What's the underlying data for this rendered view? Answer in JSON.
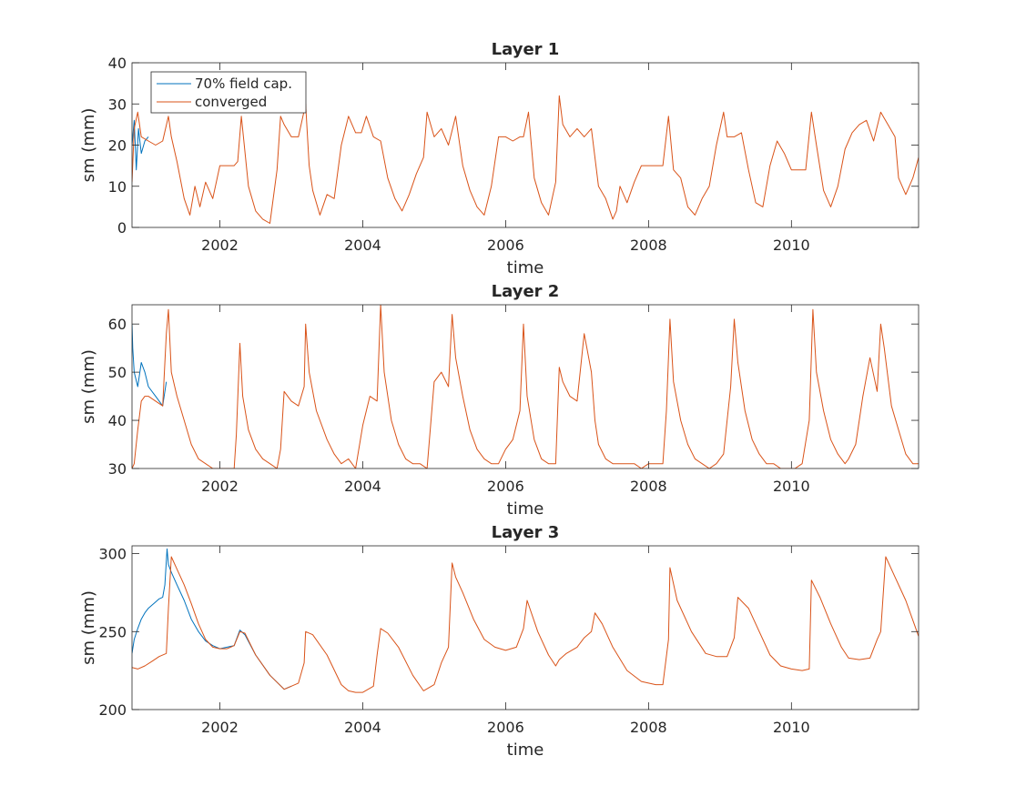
{
  "chart_data": [
    {
      "type": "line",
      "title": "Layer 1",
      "xlabel": "time",
      "ylabel": "sm (mm)",
      "xlim": [
        2000.77,
        2011.78
      ],
      "ylim": [
        0,
        40
      ],
      "xticks": [
        "2002",
        "2004",
        "2006",
        "2008",
        "2010"
      ],
      "yticks": [
        "0",
        "10",
        "20",
        "30",
        "40"
      ],
      "grid": false,
      "legend": {
        "placement": "top-left",
        "entries": [
          "70% field cap.",
          "converged"
        ]
      },
      "series": [
        {
          "name": "70% field cap.",
          "color": "#0072BD",
          "x": [
            2000.77,
            2000.8,
            2000.83,
            2000.86,
            2000.9,
            2000.95,
            2001.0
          ],
          "y": [
            20,
            26,
            14,
            24,
            18,
            21,
            22
          ]
        },
        {
          "name": "converged",
          "color": "#D95319",
          "x": [
            2000.77,
            2000.8,
            2000.85,
            2000.9,
            2001.0,
            2001.1,
            2001.2,
            2001.28,
            2001.32,
            2001.4,
            2001.5,
            2001.58,
            2001.65,
            2001.72,
            2001.8,
            2001.9,
            2002.0,
            2002.1,
            2002.2,
            2002.25,
            2002.3,
            2002.4,
            2002.5,
            2002.6,
            2002.7,
            2002.8,
            2002.85,
            2002.9,
            2003.0,
            2003.1,
            2003.2,
            2003.25,
            2003.3,
            2003.4,
            2003.5,
            2003.6,
            2003.7,
            2003.8,
            2003.9,
            2003.98,
            2004.05,
            2004.15,
            2004.25,
            2004.35,
            2004.45,
            2004.55,
            2004.65,
            2004.75,
            2004.85,
            2004.9,
            2005.0,
            2005.1,
            2005.2,
            2005.3,
            2005.4,
            2005.5,
            2005.6,
            2005.7,
            2005.8,
            2005.9,
            2006.0,
            2006.1,
            2006.2,
            2006.25,
            2006.32,
            2006.4,
            2006.5,
            2006.6,
            2006.7,
            2006.75,
            2006.8,
            2006.9,
            2007.0,
            2007.1,
            2007.2,
            2007.3,
            2007.4,
            2007.5,
            2007.55,
            2007.6,
            2007.7,
            2007.8,
            2007.9,
            2008.0,
            2008.1,
            2008.2,
            2008.28,
            2008.35,
            2008.45,
            2008.55,
            2008.65,
            2008.75,
            2008.85,
            2008.95,
            2009.05,
            2009.1,
            2009.2,
            2009.3,
            2009.4,
            2009.5,
            2009.6,
            2009.7,
            2009.8,
            2009.9,
            2010.0,
            2010.1,
            2010.2,
            2010.28,
            2010.35,
            2010.45,
            2010.55,
            2010.65,
            2010.75,
            2010.85,
            2010.95,
            2011.05,
            2011.15,
            2011.25,
            2011.35,
            2011.45,
            2011.5,
            2011.6,
            2011.7,
            2011.78
          ],
          "y": [
            11,
            24,
            28,
            22,
            21,
            20,
            21,
            27,
            22,
            16,
            7,
            3,
            10,
            5,
            11,
            7,
            15,
            15,
            15,
            16,
            27,
            10,
            4,
            2,
            1,
            14,
            27,
            25,
            22,
            22,
            30,
            15,
            9,
            3,
            8,
            7,
            20,
            27,
            23,
            23,
            27,
            22,
            21,
            12,
            7,
            4,
            8,
            13,
            17,
            28,
            22,
            24,
            20,
            27,
            15,
            9,
            5,
            3,
            10,
            22,
            22,
            21,
            22,
            22,
            28,
            12,
            6,
            3,
            11,
            32,
            25,
            22,
            24,
            22,
            24,
            10,
            7,
            2,
            4,
            10,
            6,
            11,
            15,
            15,
            15,
            15,
            27,
            14,
            12,
            5,
            3,
            7,
            10,
            20,
            28,
            22,
            22,
            23,
            14,
            6,
            5,
            15,
            21,
            18,
            14,
            14,
            14,
            28,
            20,
            9,
            5,
            10,
            19,
            23,
            25,
            26,
            21,
            28,
            25,
            22,
            12,
            8,
            12,
            17
          ]
        }
      ]
    },
    {
      "type": "line",
      "title": "Layer 2",
      "xlabel": "time",
      "ylabel": "sm (mm)",
      "xlim": [
        2000.77,
        2011.78
      ],
      "ylim": [
        30,
        64
      ],
      "xticks": [
        "2002",
        "2004",
        "2006",
        "2008",
        "2010"
      ],
      "yticks": [
        "30",
        "40",
        "50",
        "60"
      ],
      "grid": false,
      "series": [
        {
          "name": "70% field cap.",
          "color": "#0072BD",
          "x": [
            2000.77,
            2000.78,
            2000.8,
            2000.85,
            2000.9,
            2000.95,
            2001.0,
            2001.1,
            2001.2,
            2001.25
          ],
          "y": [
            60,
            55,
            50,
            47,
            52,
            50,
            47,
            45,
            43,
            48
          ]
        },
        {
          "name": "converged",
          "color": "#D95319",
          "x": [
            2000.77,
            2000.8,
            2000.85,
            2000.9,
            2000.95,
            2001.0,
            2001.1,
            2001.2,
            2001.25,
            2001.28,
            2001.32,
            2001.4,
            2001.5,
            2001.6,
            2001.7,
            2001.8,
            2001.9,
            2002.0,
            2002.1,
            2002.2,
            2002.23,
            2002.28,
            2002.32,
            2002.4,
            2002.5,
            2002.6,
            2002.7,
            2002.8,
            2002.85,
            2002.9,
            2003.0,
            2003.1,
            2003.18,
            2003.2,
            2003.25,
            2003.35,
            2003.5,
            2003.6,
            2003.7,
            2003.8,
            2003.9,
            2004.0,
            2004.1,
            2004.2,
            2004.25,
            2004.3,
            2004.4,
            2004.5,
            2004.6,
            2004.7,
            2004.8,
            2004.9,
            2005.0,
            2005.1,
            2005.2,
            2005.25,
            2005.3,
            2005.4,
            2005.5,
            2005.6,
            2005.7,
            2005.8,
            2005.9,
            2006.0,
            2006.1,
            2006.2,
            2006.25,
            2006.3,
            2006.4,
            2006.5,
            2006.6,
            2006.7,
            2006.75,
            2006.8,
            2006.9,
            2007.0,
            2007.1,
            2007.2,
            2007.25,
            2007.3,
            2007.4,
            2007.5,
            2007.6,
            2007.7,
            2007.8,
            2007.9,
            2008.0,
            2008.1,
            2008.2,
            2008.25,
            2008.3,
            2008.35,
            2008.45,
            2008.55,
            2008.65,
            2008.75,
            2008.85,
            2008.95,
            2009.05,
            2009.15,
            2009.2,
            2009.25,
            2009.35,
            2009.45,
            2009.55,
            2009.65,
            2009.75,
            2009.85,
            2009.95,
            2010.05,
            2010.15,
            2010.25,
            2010.3,
            2010.35,
            2010.45,
            2010.55,
            2010.65,
            2010.75,
            2010.8,
            2010.9,
            2011.0,
            2011.1,
            2011.2,
            2011.25,
            2011.3,
            2011.4,
            2011.5,
            2011.6,
            2011.7,
            2011.78
          ],
          "y": [
            30,
            31,
            38,
            44,
            45,
            45,
            44,
            43,
            58,
            63,
            50,
            45,
            40,
            35,
            32,
            31,
            30,
            30,
            30,
            30,
            37,
            56,
            45,
            38,
            34,
            32,
            31,
            30,
            34,
            46,
            44,
            43,
            47,
            60,
            50,
            42,
            36,
            33,
            31,
            32,
            30,
            39,
            45,
            44,
            64,
            50,
            40,
            35,
            32,
            31,
            31,
            30,
            48,
            50,
            47,
            62,
            53,
            45,
            38,
            34,
            32,
            31,
            31,
            34,
            36,
            42,
            60,
            45,
            36,
            32,
            31,
            31,
            51,
            48,
            45,
            44,
            58,
            50,
            40,
            35,
            32,
            31,
            31,
            31,
            31,
            30,
            31,
            31,
            31,
            42,
            61,
            48,
            40,
            35,
            32,
            31,
            30,
            31,
            33,
            47,
            61,
            52,
            42,
            36,
            33,
            31,
            31,
            30,
            30,
            30,
            31,
            40,
            63,
            50,
            42,
            36,
            33,
            31,
            32,
            35,
            45,
            53,
            46,
            60,
            55,
            43,
            38,
            33,
            31,
            31
          ]
        }
      ]
    },
    {
      "type": "line",
      "title": "Layer 3",
      "xlabel": "time",
      "ylabel": "sm (mm)",
      "xlim": [
        2000.77,
        2011.78
      ],
      "ylim": [
        200,
        305
      ],
      "xticks": [
        "2002",
        "2004",
        "2006",
        "2008",
        "2010"
      ],
      "yticks": [
        "200",
        "250",
        "300"
      ],
      "grid": false,
      "series": [
        {
          "name": "70% field cap.",
          "color": "#0072BD",
          "x": [
            2000.77,
            2000.8,
            2000.85,
            2000.9,
            2000.95,
            2001.0,
            2001.05,
            2001.1,
            2001.15,
            2001.2,
            2001.23,
            2001.26,
            2001.28,
            2001.32,
            2001.4,
            2001.5,
            2001.6,
            2001.7,
            2001.8,
            2001.9,
            2002.0,
            2002.1,
            2002.2,
            2002.28,
            2002.35,
            2002.5,
            2002.7,
            2002.9,
            2003.0
          ],
          "y": [
            236,
            245,
            252,
            258,
            262,
            265,
            267,
            269,
            271,
            272,
            280,
            303,
            293,
            288,
            280,
            270,
            258,
            250,
            244,
            241,
            239,
            240,
            241,
            251,
            248,
            235,
            222,
            213,
            215
          ]
        },
        {
          "name": "converged",
          "color": "#D95319",
          "x": [
            2000.77,
            2000.85,
            2000.95,
            2001.05,
            2001.15,
            2001.25,
            2001.28,
            2001.32,
            2001.4,
            2001.5,
            2001.6,
            2001.7,
            2001.8,
            2001.9,
            2002.0,
            2002.1,
            2002.2,
            2002.28,
            2002.35,
            2002.5,
            2002.7,
            2002.9,
            2003.0,
            2003.1,
            2003.18,
            2003.2,
            2003.3,
            2003.5,
            2003.7,
            2003.8,
            2003.9,
            2004.0,
            2004.15,
            2004.2,
            2004.25,
            2004.35,
            2004.5,
            2004.7,
            2004.85,
            2005.0,
            2005.1,
            2005.2,
            2005.25,
            2005.3,
            2005.4,
            2005.55,
            2005.7,
            2005.85,
            2006.0,
            2006.15,
            2006.25,
            2006.3,
            2006.45,
            2006.6,
            2006.7,
            2006.75,
            2006.85,
            2007.0,
            2007.1,
            2007.2,
            2007.25,
            2007.35,
            2007.5,
            2007.7,
            2007.9,
            2008.1,
            2008.2,
            2008.28,
            2008.3,
            2008.4,
            2008.6,
            2008.8,
            2008.95,
            2009.1,
            2009.2,
            2009.25,
            2009.4,
            2009.55,
            2009.7,
            2009.85,
            2010.0,
            2010.15,
            2010.25,
            2010.28,
            2010.4,
            2010.55,
            2010.7,
            2010.8,
            2010.95,
            2011.1,
            2011.2,
            2011.25,
            2011.32,
            2011.45,
            2011.6,
            2011.78
          ],
          "y": [
            227,
            226,
            228,
            231,
            234,
            236,
            265,
            298,
            290,
            280,
            268,
            255,
            245,
            240,
            239,
            239,
            241,
            250,
            249,
            235,
            222,
            213,
            215,
            217,
            230,
            250,
            248,
            235,
            216,
            212,
            211,
            211,
            215,
            235,
            252,
            249,
            240,
            222,
            212,
            216,
            230,
            240,
            294,
            285,
            275,
            258,
            245,
            240,
            238,
            240,
            252,
            270,
            250,
            235,
            228,
            232,
            236,
            240,
            246,
            250,
            262,
            255,
            240,
            225,
            218,
            216,
            216,
            245,
            291,
            270,
            250,
            236,
            234,
            234,
            246,
            272,
            265,
            250,
            235,
            228,
            226,
            225,
            226,
            283,
            272,
            255,
            240,
            233,
            232,
            233,
            245,
            250,
            298,
            285,
            270,
            247
          ]
        }
      ]
    }
  ]
}
